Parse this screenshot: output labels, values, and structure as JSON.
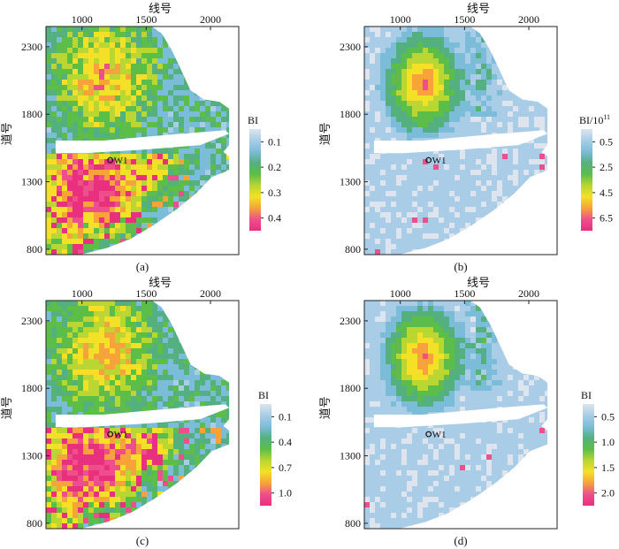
{
  "chart_data": [
    {
      "type": "heatmap",
      "panel": "(a)",
      "xlabel": "线号",
      "ylabel": "道号",
      "xticks": [
        1000,
        1500,
        2000
      ],
      "yticks": [
        2300,
        1800,
        1300,
        800
      ],
      "xlim": [
        720,
        2220
      ],
      "ylim": [
        760,
        2450
      ],
      "colorbar": {
        "title": "BI",
        "ticks": [
          "0.1",
          "0.2",
          "0.3",
          "0.4"
        ],
        "range": [
          0.05,
          0.45
        ]
      },
      "well": {
        "name": "W1",
        "x": 1220,
        "y": 1460
      },
      "pattern": "full"
    },
    {
      "type": "heatmap",
      "panel": "(b)",
      "xlabel": "线号",
      "ylabel": "道号",
      "xticks": [
        1000,
        1500,
        2000
      ],
      "yticks": [
        2300,
        1800,
        1300,
        800
      ],
      "xlim": [
        720,
        2220
      ],
      "ylim": [
        760,
        2450
      ],
      "colorbar": {
        "title": "BI/10",
        "title_exp": "11",
        "ticks": [
          "0.5",
          "2.5",
          "4.5",
          "6.5"
        ],
        "range": [
          0,
          7.5
        ]
      },
      "well": {
        "name": "W1",
        "x": 1220,
        "y": 1460
      },
      "pattern": "north"
    },
    {
      "type": "heatmap",
      "panel": "(c)",
      "xlabel": "线号",
      "ylabel": "道号",
      "xticks": [
        1000,
        1500,
        2000
      ],
      "yticks": [
        2300,
        1800,
        1300,
        800
      ],
      "xlim": [
        720,
        2220
      ],
      "ylim": [
        760,
        2450
      ],
      "colorbar": {
        "title": "BI",
        "ticks": [
          "0.1",
          "0.4",
          "0.7",
          "1.0"
        ],
        "range": [
          0,
          1.1
        ]
      },
      "well": {
        "name": "W1",
        "x": 1220,
        "y": 1460
      },
      "pattern": "full"
    },
    {
      "type": "heatmap",
      "panel": "(d)",
      "xlabel": "线号",
      "ylabel": "道号",
      "xticks": [
        1000,
        1500,
        2000
      ],
      "yticks": [
        2300,
        1800,
        1300,
        800
      ],
      "xlim": [
        720,
        2220
      ],
      "ylim": [
        760,
        2450
      ],
      "colorbar": {
        "title": "BI",
        "ticks": [
          "0.5",
          "1.0",
          "1.5",
          "2.0"
        ],
        "range": [
          0.3,
          2.2
        ]
      },
      "well": {
        "name": "W1",
        "x": 1220,
        "y": 1460
      },
      "pattern": "north"
    }
  ],
  "colors": {
    "scale": [
      "#dde4ee",
      "#a9cde6",
      "#7bbcd9",
      "#55b07f",
      "#5cbd48",
      "#b9d633",
      "#f4e026",
      "#f7a23a",
      "#ee4f8c",
      "#e8307f"
    ],
    "no_data": "#ffffff"
  }
}
